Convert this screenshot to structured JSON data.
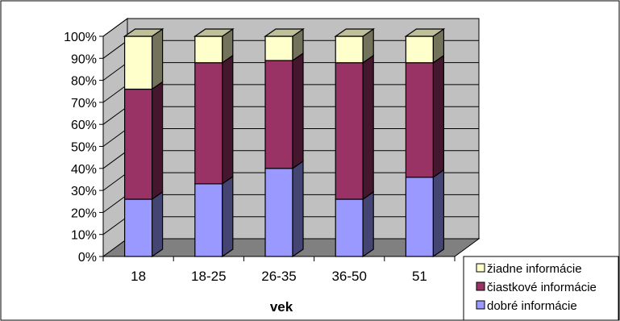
{
  "chart_data": {
    "type": "bar",
    "stacked": "100%",
    "style": "3d-column",
    "categories": [
      "18",
      "18-25",
      "26-35",
      "36-50",
      "51"
    ],
    "series": [
      {
        "name": "dobré informácie",
        "color": "#9999ff",
        "values": [
          26,
          33,
          40,
          26,
          36
        ]
      },
      {
        "name": "čiastkové informácie",
        "color": "#993366",
        "values": [
          50,
          55,
          49,
          62,
          52
        ]
      },
      {
        "name": "žiadne informácie",
        "color": "#ffffcc",
        "values": [
          24,
          12,
          11,
          12,
          12
        ]
      }
    ],
    "y_ticks": [
      "0%",
      "10%",
      "20%",
      "30%",
      "40%",
      "50%",
      "60%",
      "70%",
      "80%",
      "90%",
      "100%"
    ],
    "ylim": [
      0,
      100
    ],
    "xlabel": "vek",
    "ylabel": "",
    "title": "",
    "grid": true,
    "wall_color": "#c0c0c0",
    "floor_color": "#808080",
    "legend": {
      "placement": "bottom-right",
      "order": [
        "žiadne informácie",
        "čiastkové informácie",
        "dobré informácie"
      ]
    }
  }
}
